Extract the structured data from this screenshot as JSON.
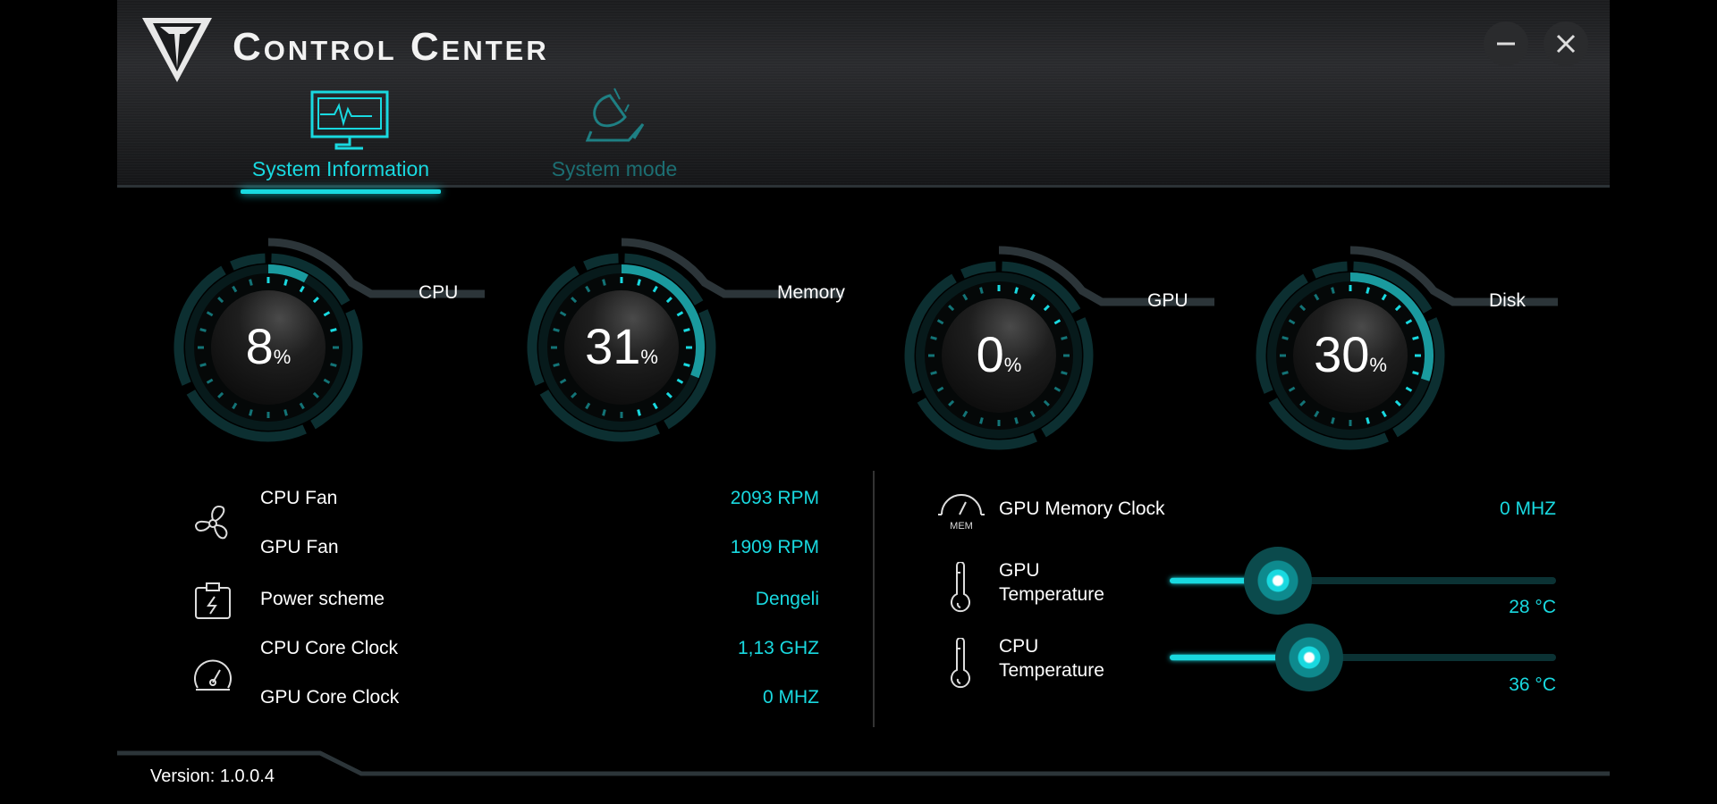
{
  "window": {
    "title": "Control Center",
    "minimize_icon": "minimize-icon",
    "close_icon": "close-icon"
  },
  "tabs": [
    {
      "label": "System Information",
      "icon": "monitor-pulse-icon",
      "active": true
    },
    {
      "label": "System mode",
      "icon": "system-mode-icon",
      "active": false
    }
  ],
  "gauges": [
    {
      "label": "CPU",
      "value": 8,
      "unit": "%"
    },
    {
      "label": "Memory",
      "value": 31,
      "unit": "%"
    },
    {
      "label": "GPU",
      "value": 0,
      "unit": "%"
    },
    {
      "label": "Disk",
      "value": 30,
      "unit": "%"
    }
  ],
  "left_info": [
    {
      "label": "CPU Fan",
      "value": "2093 RPM"
    },
    {
      "label": "GPU Fan",
      "value": "1909 RPM"
    },
    {
      "label": "Power scheme",
      "value": "Dengeli"
    },
    {
      "label": "CPU Core Clock",
      "value": "1,13 GHZ"
    },
    {
      "label": "GPU Core Clock",
      "value": "0 MHZ"
    }
  ],
  "gpu_memory": {
    "label": "GPU Memory Clock",
    "value": "0 MHZ",
    "icon_text": "MEM"
  },
  "temps": [
    {
      "label_line1": "GPU",
      "label_line2": "Temperature",
      "value": "28 °C",
      "level": 28
    },
    {
      "label_line1": "CPU",
      "label_line2": "Temperature",
      "value": "36 °C",
      "level": 36
    }
  ],
  "footer": {
    "version": "Version: 1.0.0.4"
  },
  "colors": {
    "accent": "#19d9e0",
    "ring": "#0e3a3c",
    "line": "#2c3539"
  }
}
